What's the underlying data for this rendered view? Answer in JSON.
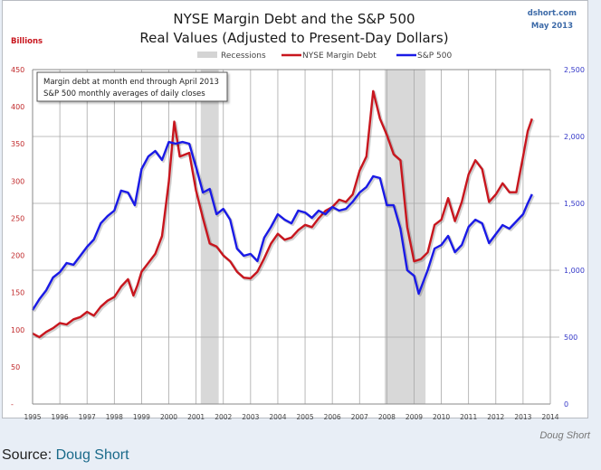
{
  "chart_data": {
    "type": "line",
    "title": "NYSE Margin Debt and the S&P 500",
    "subtitle": "Real Values (Adjusted to Present-Day Dollars)",
    "source_label": "dshort.com",
    "date_label": "May 2013",
    "ylabel_left": "Billions",
    "xlabel": "",
    "annotation": [
      "Margin debt at month end through April 2013",
      "S&P 500 monthly averages of daily closes"
    ],
    "legend": [
      "Recessions",
      "NYSE Margin Debt",
      "S&P 500"
    ],
    "legend_position": "top-center",
    "grid": true,
    "x_ticks": [
      "1995",
      "1996",
      "1997",
      "1998",
      "1999",
      "2000",
      "2001",
      "2002",
      "2003",
      "2004",
      "2005",
      "2006",
      "2007",
      "2008",
      "2009",
      "2010",
      "2011",
      "2012",
      "2013",
      "2014"
    ],
    "xlim": [
      1995,
      2014
    ],
    "y_left_ticks": [
      "-",
      "50",
      "100",
      "150",
      "200",
      "250",
      "300",
      "350",
      "400",
      "450"
    ],
    "ylim_left": [
      0,
      450
    ],
    "y_right_ticks": [
      "0",
      "500",
      "1,000",
      "1,500",
      "2,000",
      "2,500"
    ],
    "ylim_right": [
      0,
      2500
    ],
    "recessions": [
      {
        "start": 2001.17,
        "end": 2001.83
      },
      {
        "start": 2007.92,
        "end": 2009.42
      }
    ],
    "colors": {
      "margin_debt": "#c8161e",
      "sp500": "#1a1ae6",
      "recession": "#d4d4d4",
      "left_axis": "#c0282a",
      "right_axis": "#3438c8"
    },
    "series": [
      {
        "name": "NYSE Margin Debt",
        "axis": "left",
        "x": [
          1995.0,
          1995.25,
          1995.5,
          1995.75,
          1996.0,
          1996.25,
          1996.5,
          1996.75,
          1997.0,
          1997.25,
          1997.5,
          1997.75,
          1998.0,
          1998.25,
          1998.5,
          1998.7,
          1998.85,
          1999.0,
          1999.25,
          1999.5,
          1999.75,
          2000.0,
          2000.2,
          2000.4,
          2000.75,
          2001.0,
          2001.25,
          2001.5,
          2001.75,
          2002.0,
          2002.25,
          2002.5,
          2002.75,
          2003.0,
          2003.25,
          2003.5,
          2003.75,
          2004.0,
          2004.25,
          2004.5,
          2004.75,
          2005.0,
          2005.25,
          2005.5,
          2005.75,
          2006.0,
          2006.25,
          2006.5,
          2006.75,
          2007.0,
          2007.25,
          2007.5,
          2007.75,
          2008.0,
          2008.25,
          2008.5,
          2008.75,
          2009.0,
          2009.25,
          2009.5,
          2009.75,
          2010.0,
          2010.25,
          2010.5,
          2010.75,
          2011.0,
          2011.25,
          2011.5,
          2011.75,
          2012.0,
          2012.25,
          2012.5,
          2012.75,
          2013.0,
          2013.17,
          2013.33
        ],
        "values": [
          95,
          90,
          97,
          102,
          109,
          107,
          114,
          117,
          124,
          119,
          131,
          139,
          144,
          158,
          168,
          146,
          160,
          178,
          190,
          202,
          226,
          299,
          380,
          333,
          338,
          287,
          250,
          216,
          212,
          200,
          192,
          178,
          170,
          169,
          178,
          196,
          216,
          229,
          221,
          224,
          234,
          241,
          238,
          250,
          260,
          265,
          275,
          272,
          282,
          314,
          333,
          421,
          384,
          362,
          336,
          328,
          238,
          192,
          195,
          204,
          241,
          248,
          277,
          246,
          272,
          309,
          328,
          316,
          272,
          282,
          297,
          285,
          285,
          333,
          367,
          384
        ]
      },
      {
        "name": "S&P 500",
        "axis": "right",
        "x": [
          1995.0,
          1995.25,
          1995.5,
          1995.75,
          1996.0,
          1996.25,
          1996.5,
          1996.75,
          1997.0,
          1997.25,
          1997.5,
          1997.75,
          1998.0,
          1998.25,
          1998.5,
          1998.75,
          1999.0,
          1999.25,
          1999.5,
          1999.75,
          2000.0,
          2000.25,
          2000.5,
          2000.75,
          2001.0,
          2001.25,
          2001.5,
          2001.75,
          2002.0,
          2002.25,
          2002.5,
          2002.75,
          2003.0,
          2003.25,
          2003.5,
          2003.75,
          2004.0,
          2004.25,
          2004.5,
          2004.75,
          2005.0,
          2005.25,
          2005.5,
          2005.75,
          2006.0,
          2006.25,
          2006.5,
          2006.75,
          2007.0,
          2007.25,
          2007.5,
          2007.75,
          2008.0,
          2008.25,
          2008.5,
          2008.75,
          2009.0,
          2009.17,
          2009.5,
          2009.75,
          2010.0,
          2010.25,
          2010.5,
          2010.75,
          2011.0,
          2011.25,
          2011.5,
          2011.75,
          2012.0,
          2012.25,
          2012.5,
          2012.75,
          2013.0,
          2013.17,
          2013.33
        ],
        "values": [
          703,
          784,
          851,
          946,
          986,
          1054,
          1041,
          1108,
          1176,
          1230,
          1351,
          1405,
          1446,
          1595,
          1581,
          1486,
          1757,
          1851,
          1892,
          1824,
          1959,
          1946,
          1959,
          1946,
          1770,
          1581,
          1608,
          1419,
          1459,
          1378,
          1162,
          1108,
          1122,
          1068,
          1243,
          1324,
          1419,
          1378,
          1351,
          1446,
          1432,
          1392,
          1446,
          1419,
          1473,
          1446,
          1459,
          1513,
          1581,
          1622,
          1703,
          1689,
          1486,
          1486,
          1311,
          1000,
          959,
          824,
          1000,
          1162,
          1189,
          1257,
          1135,
          1189,
          1324,
          1378,
          1351,
          1203,
          1270,
          1338,
          1311,
          1365,
          1419,
          1500,
          1568
        ]
      }
    ]
  },
  "footer": {
    "credit": "Doug Short",
    "source_prefix": "Source: ",
    "source_link": "Doug Short"
  }
}
